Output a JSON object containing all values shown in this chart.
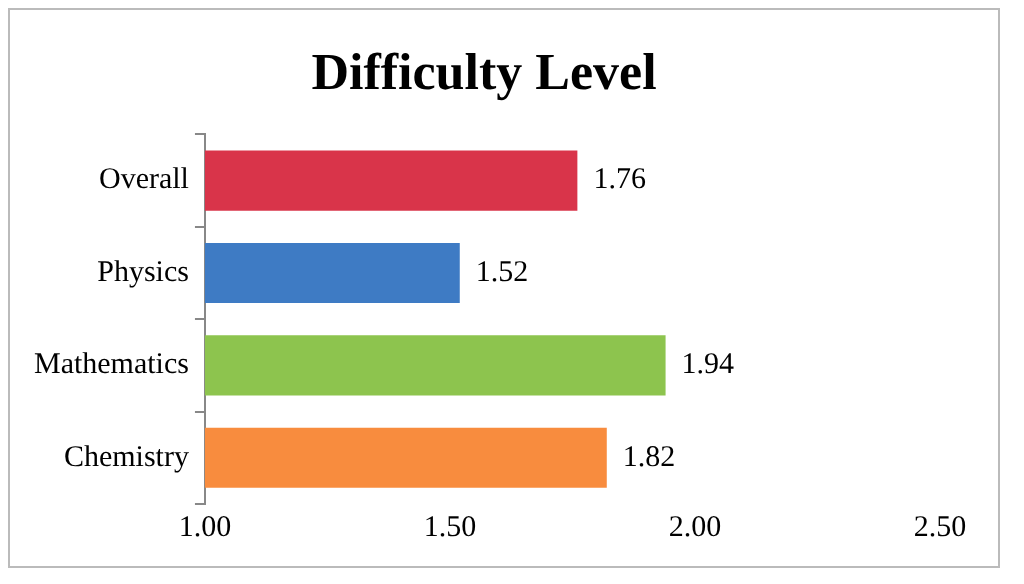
{
  "chart_data": {
    "type": "bar",
    "orientation": "horizontal",
    "title": "Difficulty Level",
    "categories": [
      "Overall",
      "Physics",
      "Mathematics",
      "Chemistry"
    ],
    "values": [
      1.76,
      1.52,
      1.94,
      1.82
    ],
    "colors": [
      "#d9344a",
      "#3e7bc4",
      "#8dc44e",
      "#f88c3e"
    ],
    "xlim": [
      1,
      2.5
    ],
    "xticks": [
      {
        "value": 1,
        "label": "1.00"
      },
      {
        "value": 1.5,
        "label": "1.50"
      },
      {
        "value": 2,
        "label": "2.00"
      },
      {
        "value": 2.5,
        "label": "2.50"
      }
    ],
    "data_labels": true,
    "grid": false,
    "legend": false
  }
}
